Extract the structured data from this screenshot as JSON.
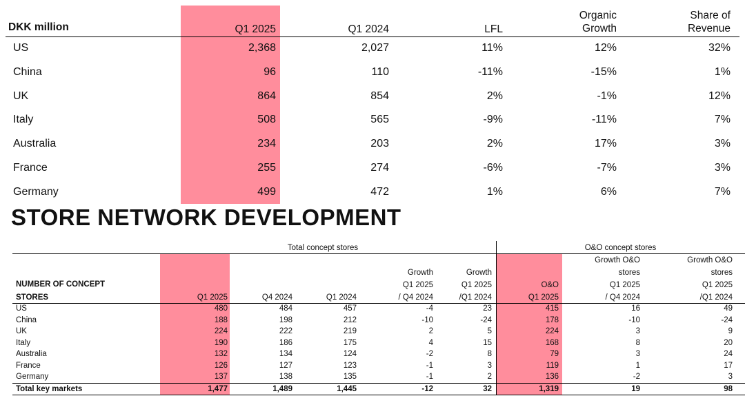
{
  "markets_table": {
    "unit_label": "DKK million",
    "headers": [
      "Q1 2025",
      "Q1 2024",
      "LFL",
      "Organic Growth",
      "Share of Revenue"
    ],
    "header_organic": [
      "Organic",
      "Growth"
    ],
    "header_share": [
      "Share of",
      "Revenue"
    ],
    "rows": [
      {
        "market": "US",
        "q1_2025": "2,368",
        "q1_2024": "2,027",
        "lfl": "11%",
        "organic": "12%",
        "share": "32%"
      },
      {
        "market": "China",
        "q1_2025": "96",
        "q1_2024": "110",
        "lfl": "-11%",
        "organic": "-15%",
        "share": "1%"
      },
      {
        "market": "UK",
        "q1_2025": "864",
        "q1_2024": "854",
        "lfl": "2%",
        "organic": "-1%",
        "share": "12%"
      },
      {
        "market": "Italy",
        "q1_2025": "508",
        "q1_2024": "565",
        "lfl": "-9%",
        "organic": "-11%",
        "share": "7%"
      },
      {
        "market": "Australia",
        "q1_2025": "234",
        "q1_2024": "203",
        "lfl": "2%",
        "organic": "17%",
        "share": "3%"
      },
      {
        "market": "France",
        "q1_2025": "255",
        "q1_2024": "274",
        "lfl": "-6%",
        "organic": "-7%",
        "share": "3%"
      },
      {
        "market": "Germany",
        "q1_2025": "499",
        "q1_2024": "472",
        "lfl": "1%",
        "organic": "6%",
        "share": "7%"
      }
    ]
  },
  "section_title": "STORE NETWORK DEVELOPMENT",
  "stores_table": {
    "group_total": "Total concept stores",
    "group_oo": "O&O concept stores",
    "row_header": [
      "NUMBER OF CONCEPT",
      "STORES"
    ],
    "col_q1_2025": "Q1 2025",
    "col_q4_2024": "Q4 2024",
    "col_q1_2024": "Q1 2024",
    "col_growth_q4": [
      "Growth",
      "Q1 2025",
      "/ Q4 2024"
    ],
    "col_growth_q1": [
      "Growth",
      "Q1 2025",
      "/Q1 2024"
    ],
    "col_oo": [
      "O&O",
      "Q1 2025"
    ],
    "col_oo_growth_q4": [
      "Growth O&O",
      "stores",
      "Q1 2025",
      "/ Q4 2024"
    ],
    "col_oo_growth_q1": [
      "Growth O&O",
      "stores",
      "Q1 2025",
      "/Q1 2024"
    ],
    "rows": [
      {
        "market": "US",
        "q1_2025": "480",
        "q4_2024": "484",
        "q1_2024": "457",
        "g_q4": "-4",
        "g_q1": "23",
        "oo": "415",
        "oo_g_q4": "16",
        "oo_g_q1": "49"
      },
      {
        "market": "China",
        "q1_2025": "188",
        "q4_2024": "198",
        "q1_2024": "212",
        "g_q4": "-10",
        "g_q1": "-24",
        "oo": "178",
        "oo_g_q4": "-10",
        "oo_g_q1": "-24"
      },
      {
        "market": "UK",
        "q1_2025": "224",
        "q4_2024": "222",
        "q1_2024": "219",
        "g_q4": "2",
        "g_q1": "5",
        "oo": "224",
        "oo_g_q4": "3",
        "oo_g_q1": "9"
      },
      {
        "market": "Italy",
        "q1_2025": "190",
        "q4_2024": "186",
        "q1_2024": "175",
        "g_q4": "4",
        "g_q1": "15",
        "oo": "168",
        "oo_g_q4": "8",
        "oo_g_q1": "20"
      },
      {
        "market": "Australia",
        "q1_2025": "132",
        "q4_2024": "134",
        "q1_2024": "124",
        "g_q4": "-2",
        "g_q1": "8",
        "oo": "79",
        "oo_g_q4": "3",
        "oo_g_q1": "24"
      },
      {
        "market": "France",
        "q1_2025": "126",
        "q4_2024": "127",
        "q1_2024": "123",
        "g_q4": "-1",
        "g_q1": "3",
        "oo": "119",
        "oo_g_q4": "1",
        "oo_g_q1": "17"
      },
      {
        "market": "Germany",
        "q1_2025": "137",
        "q4_2024": "138",
        "q1_2024": "135",
        "g_q4": "-1",
        "g_q1": "2",
        "oo": "136",
        "oo_g_q4": "-2",
        "oo_g_q1": "3"
      }
    ],
    "total": {
      "market": "Total key markets",
      "q1_2025": "1,477",
      "q4_2024": "1,489",
      "q1_2024": "1,445",
      "g_q4": "-12",
      "g_q1": "32",
      "oo": "1,319",
      "oo_g_q4": "19",
      "oo_g_q1": "98"
    }
  }
}
